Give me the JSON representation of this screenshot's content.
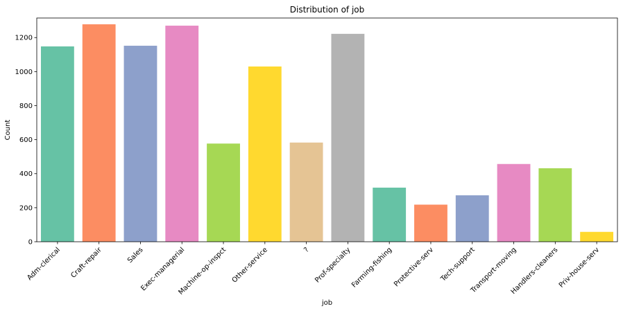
{
  "chart_data": {
    "type": "bar",
    "title": "Distribution of job",
    "xlabel": "job",
    "ylabel": "Count",
    "ylim": [
      0,
      1315
    ],
    "yticks": [
      0,
      200,
      400,
      600,
      800,
      1000,
      1200
    ],
    "grid": false,
    "categories": [
      "Adm-clerical",
      "Craft-repair",
      "Sales",
      "Exec-managerial",
      "Machine-op-inspct",
      "Other-service",
      "?",
      "Prof-specialty",
      "Farming-fishing",
      "Protective-serv",
      "Tech-support",
      "Transport-moving",
      "Handlers-cleaners",
      "Priv-house-serv"
    ],
    "values": [
      1148,
      1278,
      1152,
      1270,
      577,
      1030,
      583,
      1222,
      318,
      218,
      273,
      457,
      432,
      58
    ],
    "colors": [
      "#66c2a5",
      "#fc8d62",
      "#8da0cb",
      "#e78ac3",
      "#a6d854",
      "#ffd92f",
      "#e5c494",
      "#b3b3b3",
      "#66c2a5",
      "#fc8d62",
      "#8da0cb",
      "#e78ac3",
      "#a6d854",
      "#ffd92f"
    ]
  }
}
